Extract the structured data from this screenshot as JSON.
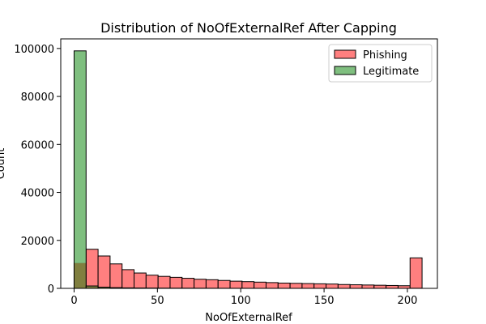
{
  "chart_data": {
    "type": "histogram",
    "title": "Distribution of NoOfExternalRef After Capping",
    "xlabel": "NoOfExternalRef",
    "ylabel": "Count",
    "xlim": [
      -8,
      218
    ],
    "ylim": [
      0,
      104000
    ],
    "xticks": [
      0,
      50,
      100,
      150,
      200
    ],
    "yticks": [
      0,
      20000,
      40000,
      60000,
      80000,
      100000
    ],
    "bin_edges": [
      0,
      7.2,
      14.4,
      21.6,
      28.8,
      36.0,
      43.2,
      50.4,
      57.6,
      64.8,
      72.0,
      79.2,
      86.4,
      93.6,
      100.8,
      108.0,
      115.2,
      122.4,
      129.6,
      136.8,
      144.0,
      151.2,
      158.4,
      165.6,
      172.8,
      180.0,
      187.2,
      194.4,
      201.6,
      208.8
    ],
    "series": [
      {
        "name": "Phishing",
        "color": "#ff7f7f",
        "values": [
          10500,
          16300,
          13500,
          10200,
          7800,
          6400,
          5500,
          5000,
          4600,
          4200,
          3800,
          3600,
          3300,
          3000,
          2800,
          2600,
          2400,
          2200,
          2100,
          2000,
          1900,
          1800,
          1600,
          1500,
          1400,
          1300,
          1200,
          1100,
          12700
        ]
      },
      {
        "name": "Legitimate",
        "color": "#7fbf7f",
        "values": [
          99000,
          1000,
          500,
          300,
          200,
          150,
          120,
          100,
          80,
          70,
          60,
          50,
          40,
          30,
          30,
          20,
          20,
          20,
          15,
          15,
          10,
          10,
          10,
          10,
          5,
          5,
          5,
          5,
          50
        ]
      }
    ],
    "overlap_color": "#807f3f",
    "legend": {
      "placement": "top-right"
    }
  }
}
